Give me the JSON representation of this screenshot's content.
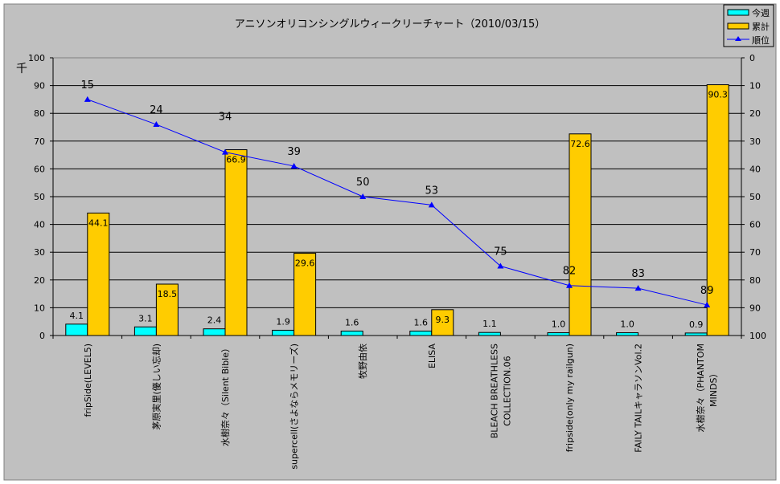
{
  "chart_data": {
    "type": "bar",
    "title": "アニソンオリコンシングルウィークリーチャート（2010/03/15）",
    "ylabel": "千",
    "ylim": [
      0,
      100
    ],
    "yticks": [
      0,
      10,
      20,
      30,
      40,
      50,
      60,
      70,
      80,
      90,
      100
    ],
    "y2lim": [
      0,
      100
    ],
    "y2_reversed": true,
    "y2ticks": [
      0,
      10,
      20,
      30,
      40,
      50,
      60,
      70,
      80,
      90,
      100
    ],
    "grid": true,
    "legend_position": "top-right",
    "categories": [
      "fripSide(LEVEL5)",
      "茅原実里(優しい忘却)",
      "水樹奈々（Silent Bible）",
      "supercell(さよならメモリーズ)",
      "牧野由依",
      "ELISA",
      "BLEACH BREATHLESS\nCOLLECTION.06",
      "fripside(only my railgun)",
      "FAILY TAILキャラソンVol.2",
      "水樹奈々（PHANTOM\nMINDS）"
    ],
    "series": [
      {
        "name": "今週",
        "type": "bar",
        "color": "#00ffff",
        "values": [
          4.1,
          3.1,
          2.4,
          1.9,
          1.6,
          1.6,
          1.1,
          1.0,
          1.0,
          0.9
        ],
        "labels": [
          "4.1",
          "3.1",
          "2.4",
          "1.9",
          "1.6",
          "1.6",
          "1.1",
          "1.0",
          "1.0",
          "0.9"
        ]
      },
      {
        "name": "累計",
        "type": "bar",
        "color": "#ffcc00",
        "values": [
          44.1,
          18.5,
          66.9,
          29.6,
          null,
          9.3,
          null,
          72.6,
          null,
          90.3
        ],
        "labels": [
          "44.1",
          "18.5",
          "66.9",
          "29.6",
          "",
          "9.3",
          "",
          "72.6",
          "",
          "90.3"
        ]
      },
      {
        "name": "順位",
        "type": "line",
        "axis": "right",
        "color": "#0000ff",
        "values": [
          15,
          24,
          34,
          39,
          50,
          53,
          75,
          82,
          83,
          89
        ],
        "labels": [
          "15",
          "24",
          "34",
          "39",
          "50",
          "53",
          "75",
          "82",
          "83",
          "89"
        ]
      }
    ]
  }
}
